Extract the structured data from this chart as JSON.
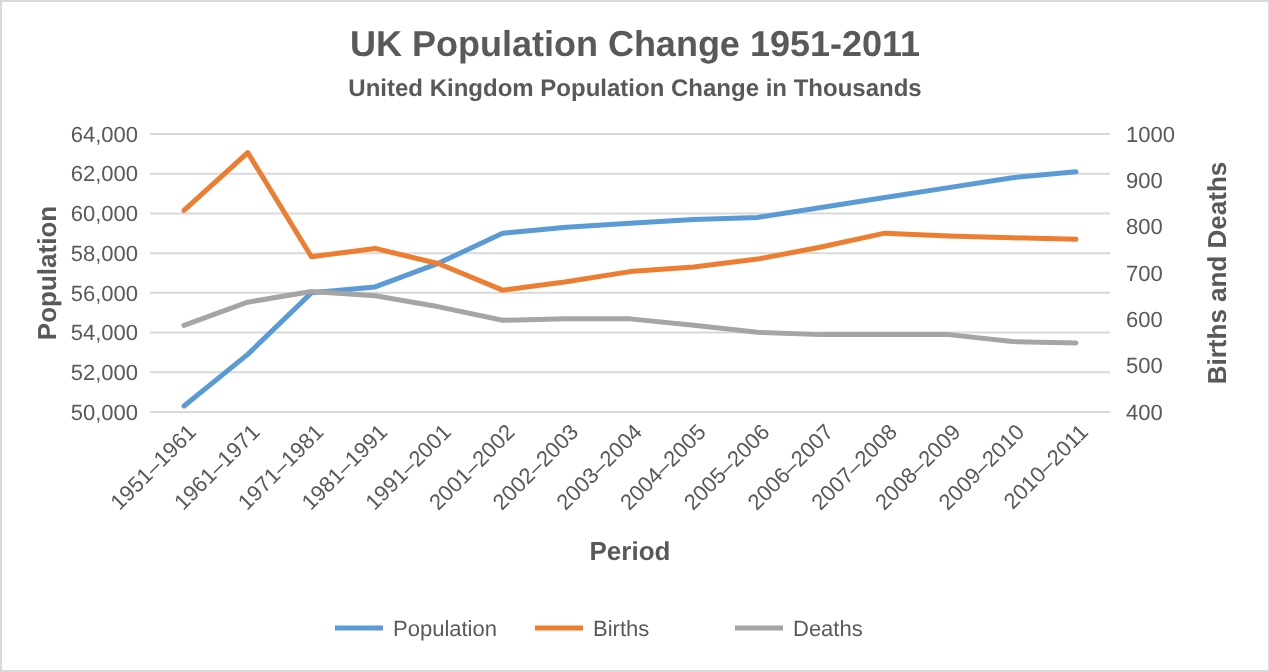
{
  "chart_data": {
    "type": "line",
    "title": "UK Population Change 1951-2011",
    "subtitle": "United Kingdom Population Change in Thousands",
    "xlabel": "Period",
    "ylabel": "Population",
    "y2label": "Births and Deaths",
    "categories": [
      "1951–1961",
      "1961–1971",
      "1971–1981",
      "1981–1991",
      "1991–2001",
      "2001–2002",
      "2002–2003",
      "2003–2004",
      "2004–2005",
      "2005–2006",
      "2006–2007",
      "2007–2008",
      "2008–2009",
      "2009–2010",
      "2010–2011"
    ],
    "series": [
      {
        "name": "Population",
        "color": "#5b9bd5",
        "values": [
          50300,
          52900,
          56000,
          56300,
          57500,
          59000,
          59300,
          59500,
          59700,
          59800,
          60300,
          60800,
          61300,
          61800,
          62100
        ]
      },
      {
        "name": "Births",
        "color": "#ed7d31",
        "axis": "y2",
        "values": [
          835,
          960,
          735,
          753,
          720,
          663,
          681,
          703,
          713,
          730,
          756,
          786,
          780,
          776,
          773
        ]
      },
      {
        "name": "Deaths",
        "color": "#a5a5a5",
        "axis": "y2",
        "values": [
          587,
          637,
          660,
          651,
          627,
          598,
          601,
          601,
          587,
          572,
          567,
          567,
          567,
          552,
          549
        ]
      }
    ],
    "ylim": [
      50000,
      64000
    ],
    "yticks": [
      {
        "value": 50000,
        "label": "50,000"
      },
      {
        "value": 52000,
        "label": "52,000"
      },
      {
        "value": 54000,
        "label": "54,000"
      },
      {
        "value": 56000,
        "label": "56,000"
      },
      {
        "value": 58000,
        "label": "58,000"
      },
      {
        "value": 60000,
        "label": "60,000"
      },
      {
        "value": 62000,
        "label": "62,000"
      },
      {
        "value": 64000,
        "label": "64,000"
      }
    ],
    "y2lim": [
      400,
      1000
    ],
    "y2ticks": [
      400,
      500,
      600,
      700,
      800,
      900,
      1000
    ],
    "grid": "y",
    "legend": "bottom",
    "line_style": "solid"
  }
}
